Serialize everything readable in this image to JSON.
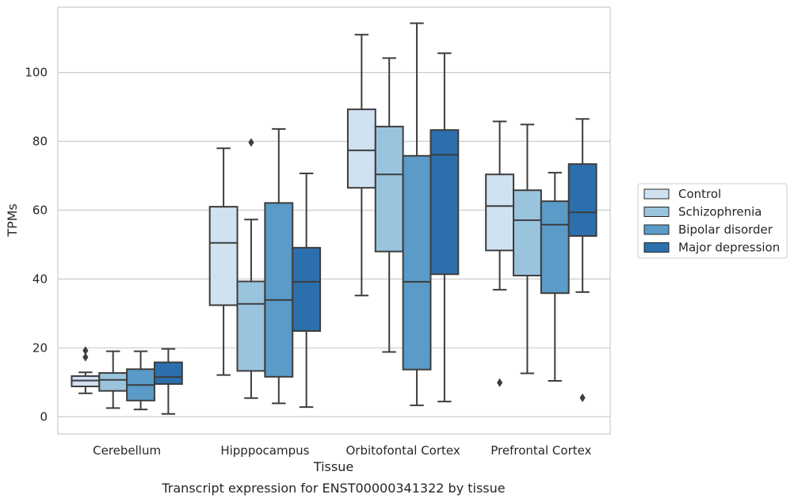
{
  "chart_data": {
    "type": "box",
    "title": "",
    "caption": "Transcript expression for ENST00000341322 by tissue",
    "xlabel": "Tissue",
    "ylabel": "TPMs",
    "ylim": [
      -5,
      119
    ],
    "yticks": [
      0,
      20,
      40,
      60,
      80,
      100
    ],
    "grid": "horizontal",
    "legend_position": "right",
    "categories": [
      "Cerebellum",
      "Hipppocampus",
      "Orbitofontal Cortex",
      "Prefrontal Cortex"
    ],
    "series": [
      {
        "name": "Control",
        "color": "#d0e1f2",
        "boxes": [
          {
            "min": 6.8,
            "q1": 8.8,
            "median": 10.5,
            "q3": 11.8,
            "max": 12.9,
            "outliers": [
              17.3,
              19.2
            ]
          },
          {
            "min": 12.1,
            "q1": 32.4,
            "median": 50.5,
            "q3": 61.0,
            "max": 78.0,
            "outliers": []
          },
          {
            "min": 35.2,
            "q1": 66.5,
            "median": 77.4,
            "q3": 89.3,
            "max": 111.0,
            "outliers": []
          },
          {
            "min": 36.9,
            "q1": 48.3,
            "median": 61.2,
            "q3": 70.4,
            "max": 85.8,
            "outliers": [
              9.9
            ]
          }
        ]
      },
      {
        "name": "Schizophrenia",
        "color": "#9ac4de",
        "boxes": [
          {
            "min": 2.5,
            "q1": 7.5,
            "median": 10.7,
            "q3": 12.7,
            "max": 19.0,
            "outliers": []
          },
          {
            "min": 5.4,
            "q1": 13.3,
            "median": 32.8,
            "q3": 39.3,
            "max": 57.3,
            "outliers": [
              79.7
            ]
          },
          {
            "min": 18.8,
            "q1": 48.0,
            "median": 70.4,
            "q3": 84.3,
            "max": 104.2,
            "outliers": []
          },
          {
            "min": 12.6,
            "q1": 41.0,
            "median": 57.1,
            "q3": 65.8,
            "max": 84.9,
            "outliers": []
          }
        ]
      },
      {
        "name": "Bipolar disorder",
        "color": "#5a9bc8",
        "boxes": [
          {
            "min": 2.1,
            "q1": 4.7,
            "median": 9.2,
            "q3": 13.8,
            "max": 19.0,
            "outliers": []
          },
          {
            "min": 3.9,
            "q1": 11.6,
            "median": 33.9,
            "q3": 62.1,
            "max": 83.6,
            "outliers": []
          },
          {
            "min": 3.3,
            "q1": 13.7,
            "median": 39.2,
            "q3": 75.8,
            "max": 114.3,
            "outliers": []
          },
          {
            "min": 10.4,
            "q1": 35.9,
            "median": 55.8,
            "q3": 62.6,
            "max": 70.9,
            "outliers": []
          }
        ]
      },
      {
        "name": "Major depression",
        "color": "#2c6fad",
        "boxes": [
          {
            "min": 0.8,
            "q1": 9.5,
            "median": 11.5,
            "q3": 15.8,
            "max": 19.7,
            "outliers": []
          },
          {
            "min": 2.8,
            "q1": 24.9,
            "median": 39.2,
            "q3": 49.1,
            "max": 70.7,
            "outliers": []
          },
          {
            "min": 4.4,
            "q1": 41.4,
            "median": 76.1,
            "q3": 83.3,
            "max": 105.6,
            "outliers": []
          },
          {
            "min": 36.2,
            "q1": 52.5,
            "median": 59.4,
            "q3": 73.4,
            "max": 86.5,
            "outliers": [
              5.5
            ]
          }
        ]
      }
    ]
  }
}
